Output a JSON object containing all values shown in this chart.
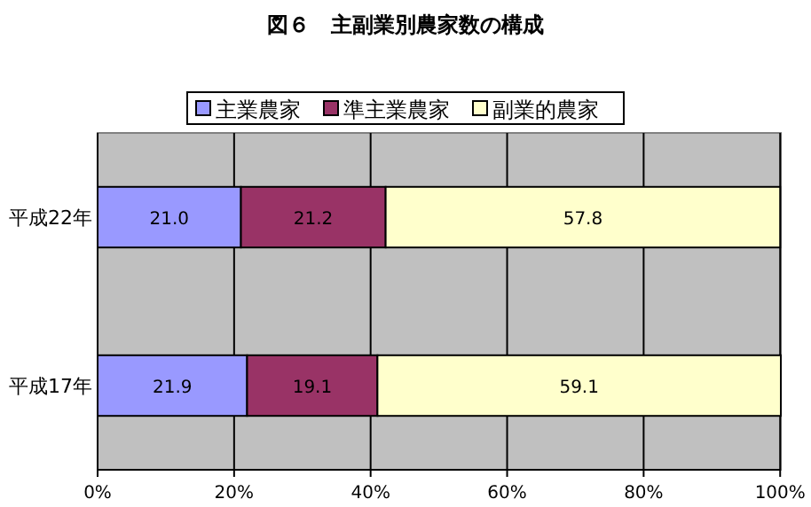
{
  "chart_data": {
    "type": "bar",
    "orientation": "horizontal",
    "stacked": true,
    "title": "図６　主副業別農家数の構成",
    "categories": [
      "平成22年",
      "平成17年"
    ],
    "series": [
      {
        "name": "主業農家",
        "color": "#9999ff",
        "values": [
          21.0,
          21.9
        ],
        "value_labels": [
          "21.0",
          "21.9"
        ]
      },
      {
        "name": "準主業農家",
        "color": "#993366",
        "values": [
          21.2,
          19.1
        ],
        "value_labels": [
          "21.2",
          "19.1"
        ]
      },
      {
        "name": "副業的農家",
        "color": "#ffffcc",
        "values": [
          57.8,
          59.1
        ],
        "value_labels": [
          "57.8",
          "59.1"
        ]
      }
    ],
    "xlim": [
      0,
      100.1
    ],
    "xticks": [
      {
        "value": 0,
        "label": "0%"
      },
      {
        "value": 20,
        "label": "20%"
      },
      {
        "value": 40,
        "label": "40%"
      },
      {
        "value": 60,
        "label": "60%"
      },
      {
        "value": 80,
        "label": "80%"
      },
      {
        "value": 100,
        "label": "100%"
      }
    ],
    "grid": "x",
    "legend": "top"
  }
}
